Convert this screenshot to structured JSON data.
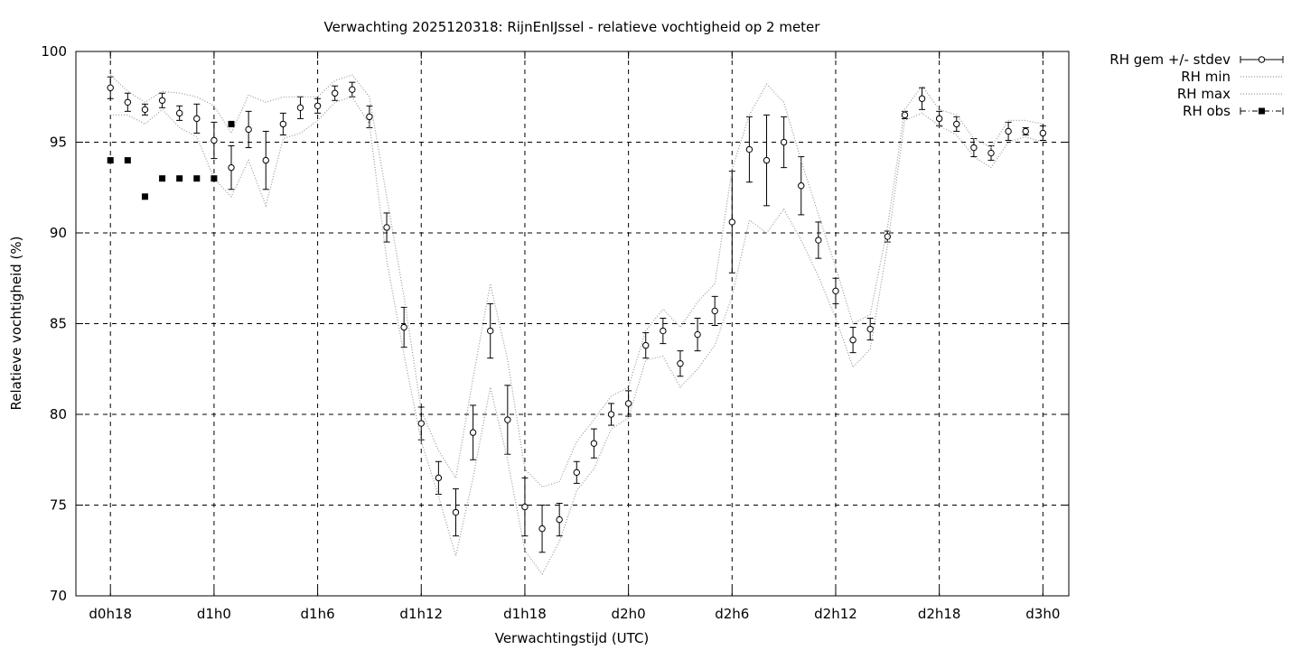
{
  "chart_data": {
    "type": "line",
    "title": "Verwachting 2025120318: RijnEnIJssel - relatieve vochtigheid op 2 meter",
    "xlabel": "Verwachtingstijd (UTC)",
    "ylabel": "Relatieve vochtigheid (%)",
    "x_unit": "uur sinds d0h0",
    "xlim": [
      16,
      73.5
    ],
    "ylim": [
      70,
      100
    ],
    "x_ticks": [
      {
        "x": 18,
        "label": "d0h18"
      },
      {
        "x": 24,
        "label": "d1h0"
      },
      {
        "x": 30,
        "label": "d1h6"
      },
      {
        "x": 36,
        "label": "d1h12"
      },
      {
        "x": 42,
        "label": "d1h18"
      },
      {
        "x": 48,
        "label": "d2h0"
      },
      {
        "x": 54,
        "label": "d2h6"
      },
      {
        "x": 60,
        "label": "d2h12"
      },
      {
        "x": 66,
        "label": "d2h18"
      },
      {
        "x": 72,
        "label": "d3h0"
      }
    ],
    "y_ticks": [
      {
        "y": 70,
        "label": "70"
      },
      {
        "y": 75,
        "label": "75"
      },
      {
        "y": 80,
        "label": "80"
      },
      {
        "y": 85,
        "label": "85"
      },
      {
        "y": 90,
        "label": "90"
      },
      {
        "y": 95,
        "label": "95"
      },
      {
        "y": 100,
        "label": "100"
      }
    ],
    "grid": true,
    "legend_position": "outside-top-right",
    "series": [
      {
        "name": "RH gem +/- stdev",
        "style": "errorbars",
        "x": [
          18,
          19,
          20,
          21,
          22,
          23,
          24,
          25,
          26,
          27,
          28,
          29,
          30,
          31,
          32,
          33,
          34,
          35,
          36,
          37,
          38,
          39,
          40,
          41,
          42,
          43,
          44,
          45,
          46,
          47,
          48,
          49,
          50,
          51,
          52,
          53,
          54,
          55,
          56,
          57,
          58,
          59,
          60,
          61,
          62,
          63,
          64,
          65,
          66,
          67,
          68,
          69,
          70,
          71,
          72
        ],
        "y": [
          98.0,
          97.2,
          96.8,
          97.3,
          96.6,
          96.3,
          95.1,
          93.6,
          95.7,
          94.0,
          96.0,
          96.9,
          97.0,
          97.7,
          97.9,
          96.4,
          90.3,
          84.8,
          79.5,
          76.5,
          74.6,
          79.0,
          84.6,
          79.7,
          74.9,
          73.7,
          74.2,
          76.8,
          78.4,
          80.0,
          80.6,
          83.8,
          84.6,
          82.8,
          84.4,
          85.7,
          90.6,
          94.6,
          94.0,
          95.0,
          92.6,
          89.6,
          86.8,
          84.1,
          84.7,
          89.8,
          96.5,
          97.4,
          96.3,
          96.0,
          94.7,
          94.4,
          95.6,
          95.6,
          95.5
        ],
        "stdev": [
          0.6,
          0.5,
          0.3,
          0.4,
          0.4,
          0.8,
          1.0,
          1.2,
          1.0,
          1.6,
          0.6,
          0.6,
          0.4,
          0.4,
          0.4,
          0.6,
          0.8,
          1.1,
          0.9,
          0.9,
          1.3,
          1.5,
          1.5,
          1.9,
          1.6,
          1.3,
          0.9,
          0.6,
          0.8,
          0.6,
          0.7,
          0.7,
          0.7,
          0.7,
          0.9,
          0.8,
          2.8,
          1.8,
          2.5,
          1.4,
          1.6,
          1.0,
          0.7,
          0.7,
          0.6,
          0.3,
          0.2,
          0.6,
          0.4,
          0.4,
          0.5,
          0.4,
          0.5,
          0.2,
          0.4
        ]
      },
      {
        "name": "RH min",
        "style": "dotted",
        "x": [
          18,
          19,
          20,
          21,
          22,
          23,
          24,
          25,
          26,
          27,
          28,
          29,
          30,
          31,
          32,
          33,
          34,
          35,
          36,
          37,
          38,
          39,
          40,
          41,
          42,
          43,
          44,
          45,
          46,
          47,
          48,
          49,
          50,
          51,
          52,
          53,
          54,
          55,
          56,
          57,
          58,
          59,
          60,
          61,
          62,
          63,
          64,
          65,
          66,
          67,
          68,
          69,
          70,
          71,
          72
        ],
        "y": [
          96.5,
          96.5,
          96.0,
          96.8,
          95.8,
          95.3,
          93.0,
          92.0,
          94.0,
          91.5,
          95.2,
          95.5,
          96.2,
          97.2,
          97.5,
          96.0,
          88.5,
          83.3,
          78.5,
          75.5,
          72.2,
          76.5,
          81.5,
          77.5,
          72.5,
          71.2,
          73.0,
          75.8,
          77.0,
          79.2,
          79.8,
          83.0,
          83.2,
          81.5,
          82.5,
          83.8,
          86.5,
          90.7,
          90.0,
          91.3,
          89.6,
          87.6,
          85.3,
          82.6,
          83.6,
          89.3,
          96.2,
          96.6,
          95.9,
          95.4,
          94.2,
          93.6,
          95.0,
          95.3,
          95.0
        ]
      },
      {
        "name": "RH max",
        "style": "dotted",
        "x": [
          18,
          19,
          20,
          21,
          22,
          23,
          24,
          25,
          26,
          27,
          28,
          29,
          30,
          31,
          32,
          33,
          34,
          35,
          36,
          37,
          38,
          39,
          40,
          41,
          42,
          43,
          44,
          45,
          46,
          47,
          48,
          49,
          50,
          51,
          52,
          53,
          54,
          55,
          56,
          57,
          58,
          59,
          60,
          61,
          62,
          63,
          64,
          65,
          66,
          67,
          68,
          69,
          70,
          71,
          72
        ],
        "y": [
          98.7,
          97.8,
          97.2,
          97.8,
          97.7,
          97.5,
          97.0,
          95.5,
          97.6,
          97.2,
          97.5,
          97.5,
          97.5,
          98.4,
          98.7,
          97.5,
          92.0,
          86.5,
          80.2,
          78.0,
          76.5,
          82.0,
          87.2,
          83.0,
          77.0,
          76.0,
          76.3,
          78.5,
          79.7,
          81.0,
          81.5,
          84.6,
          85.8,
          84.8,
          86.2,
          87.2,
          93.5,
          96.5,
          98.2,
          97.2,
          94.0,
          91.0,
          88.1,
          85.0,
          85.5,
          90.3,
          96.8,
          98.1,
          96.8,
          96.5,
          95.2,
          94.7,
          96.2,
          96.2,
          96.0
        ]
      },
      {
        "name": "RH obs",
        "style": "points",
        "x": [
          18,
          19,
          20,
          21,
          22,
          23,
          24,
          25
        ],
        "y": [
          94,
          94,
          92,
          93,
          93,
          93,
          93,
          96
        ]
      }
    ]
  }
}
